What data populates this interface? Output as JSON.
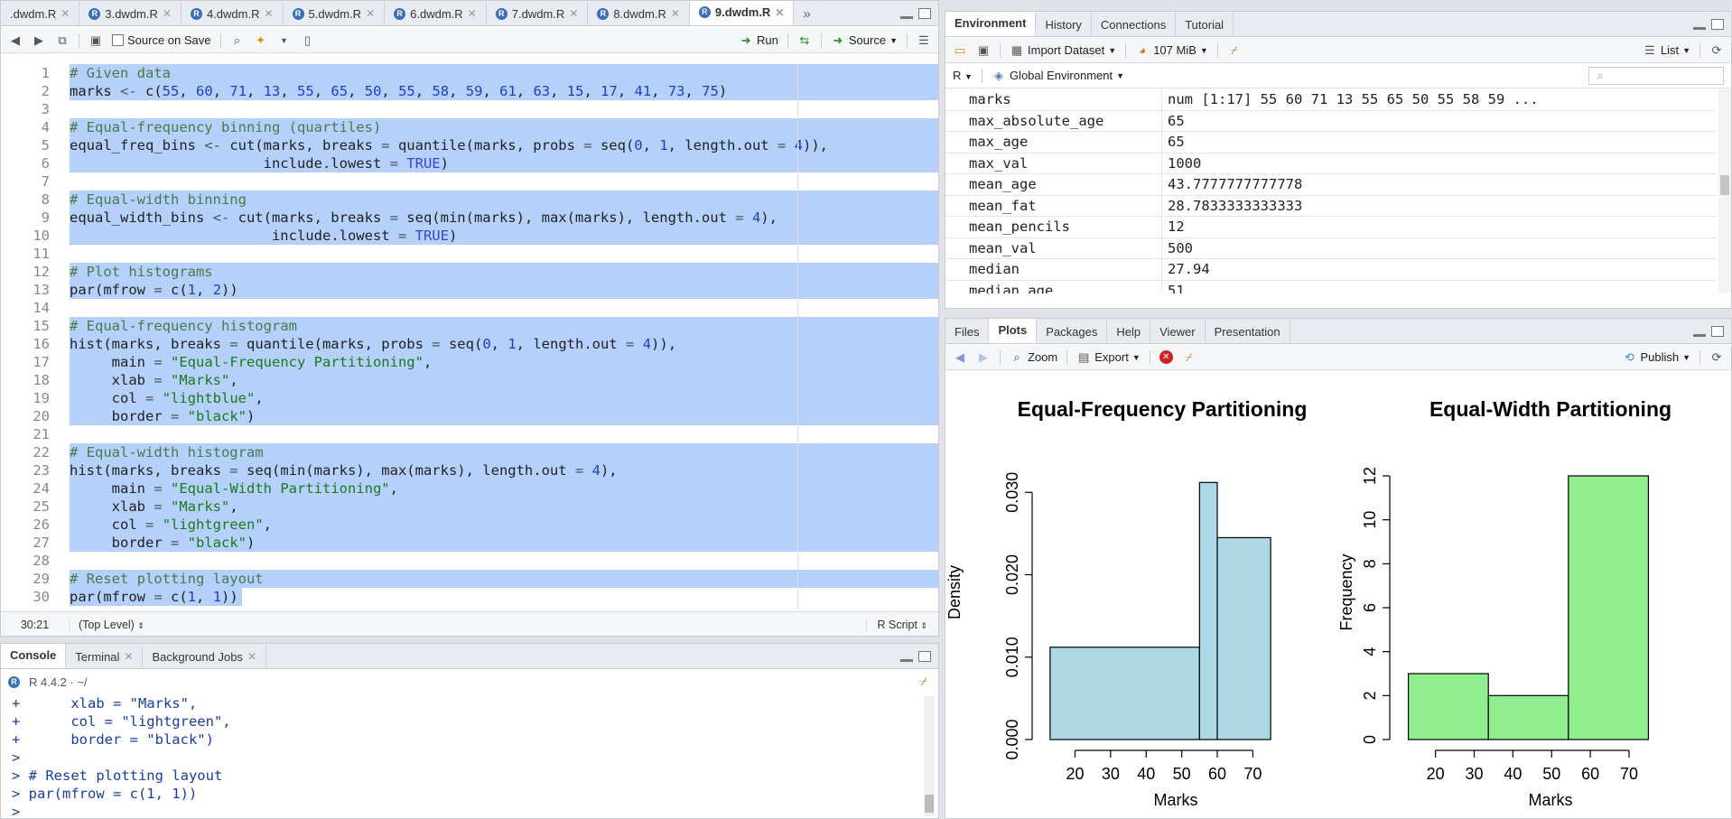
{
  "editor": {
    "tabs": [
      ".dwdm.R",
      "3.dwdm.R",
      "4.dwdm.R",
      "5.dwdm.R",
      "6.dwdm.R",
      "7.dwdm.R",
      "8.dwdm.R",
      "9.dwdm.R"
    ],
    "active_tab_index": 7,
    "source_on_save": "Source on Save",
    "run": "Run",
    "source": "Source",
    "lines": [
      "# Given data",
      "marks <- c(55, 60, 71, 13, 55, 65, 50, 55, 58, 59, 61, 63, 15, 17, 41, 73, 75)",
      "",
      "# Equal-frequency binning (quartiles)",
      "equal_freq_bins <- cut(marks, breaks = quantile(marks, probs = seq(0, 1, length.out = 4)),",
      "                       include.lowest = TRUE)",
      "",
      "# Equal-width binning",
      "equal_width_bins <- cut(marks, breaks = seq(min(marks), max(marks), length.out = 4),",
      "                        include.lowest = TRUE)",
      "",
      "# Plot histograms",
      "par(mfrow = c(1, 2))",
      "",
      "# Equal-frequency histogram",
      "hist(marks, breaks = quantile(marks, probs = seq(0, 1, length.out = 4)),",
      "     main = \"Equal-Frequency Partitioning\",",
      "     xlab = \"Marks\",",
      "     col = \"lightblue\",",
      "     border = \"black\")",
      "",
      "# Equal-width histogram",
      "hist(marks, breaks = seq(min(marks), max(marks), length.out = 4),",
      "     main = \"Equal-Width Partitioning\",",
      "     xlab = \"Marks\",",
      "     col = \"lightgreen\",",
      "     border = \"black\")",
      "",
      "# Reset plotting layout",
      "par(mfrow = c(1, 1))"
    ],
    "cursor_pos": "30:21",
    "scope": "(Top Level)",
    "file_type": "R Script"
  },
  "console": {
    "tabs": [
      "Console",
      "Terminal",
      "Background Jobs"
    ],
    "r_version": "R 4.4.2 · ~/",
    "lines": [
      "+      xlab = \"Marks\",",
      "+      col = \"lightgreen\",",
      "+      border = \"black\")",
      ">",
      "> # Reset plotting layout",
      "> par(mfrow = c(1, 1))",
      "> "
    ]
  },
  "environment": {
    "tabs": [
      "Environment",
      "History",
      "Connections",
      "Tutorial"
    ],
    "import_dataset": "Import Dataset",
    "memory": "107 MiB",
    "list_view": "List",
    "language": "R",
    "scope": "Global Environment",
    "search_placeholder": "",
    "variables": [
      {
        "name": "marks",
        "value": "num [1:17] 55 60 71 13 55 65 50 55 58 59 ..."
      },
      {
        "name": "max_absolute_age",
        "value": "65"
      },
      {
        "name": "max_age",
        "value": "65"
      },
      {
        "name": "max_val",
        "value": "1000"
      },
      {
        "name": "mean_age",
        "value": "43.7777777777778"
      },
      {
        "name": "mean_fat",
        "value": "28.7833333333333"
      },
      {
        "name": "mean_pencils",
        "value": "12"
      },
      {
        "name": "mean_val",
        "value": "500"
      },
      {
        "name": "median",
        "value": "27.94"
      },
      {
        "name": "median_age",
        "value": "51"
      }
    ]
  },
  "files_pane": {
    "tabs": [
      "Files",
      "Plots",
      "Packages",
      "Help",
      "Viewer",
      "Presentation"
    ],
    "active_tab_index": 1,
    "zoom": "Zoom",
    "export": "Export",
    "publish": "Publish"
  },
  "chart_data": [
    {
      "type": "bar",
      "title": "Equal-Frequency Partitioning",
      "xlabel": "Marks",
      "ylabel": "Density",
      "bins": [
        [
          13,
          55
        ],
        [
          55,
          60
        ],
        [
          60,
          75
        ]
      ],
      "values": [
        0.0112,
        0.0312,
        0.0245
      ],
      "xticks": [
        20,
        30,
        40,
        50,
        60,
        70
      ],
      "yticks": [
        "0.000",
        "0.010",
        "0.020",
        "0.030"
      ],
      "ylim": [
        0,
        0.032
      ],
      "color": "#add8e6"
    },
    {
      "type": "bar",
      "title": "Equal-Width Partitioning",
      "xlabel": "Marks",
      "ylabel": "Frequency",
      "bins": [
        [
          13,
          33.67
        ],
        [
          33.67,
          54.33
        ],
        [
          54.33,
          75
        ]
      ],
      "values": [
        3,
        2,
        12
      ],
      "xticks": [
        20,
        30,
        40,
        50,
        60,
        70
      ],
      "yticks": [
        "0",
        "2",
        "4",
        "6",
        "8",
        "10",
        "12"
      ],
      "ylim": [
        0,
        12
      ],
      "color": "#90ee90"
    }
  ]
}
